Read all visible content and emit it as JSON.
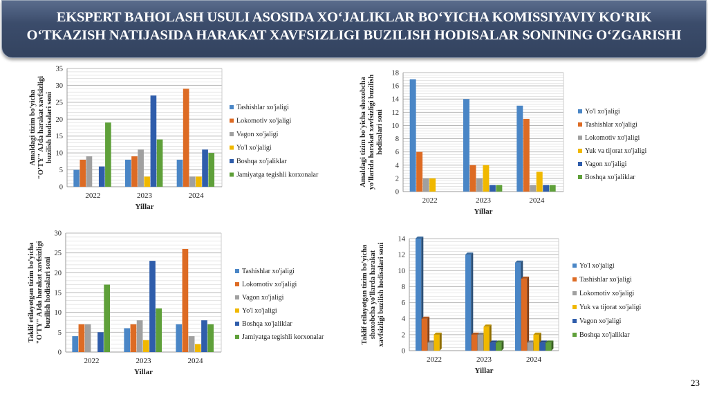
{
  "header": {
    "title_line1": "EKSPERT BAHOLASH USULI ASOSIDA XO‘JALIKLAR BO‘YICHA KOMISSIYAVIY KO‘RIK",
    "title_line2": "O‘TKAZISH NATIJASIDA HARAKAT XAVFSIZLIGI BUZILISH HODISALAR SONINING O‘ZGARISHI"
  },
  "page_number": "23",
  "colors": [
    "#4a86c6",
    "#dd6b24",
    "#a0a0a0",
    "#f0b800",
    "#2f5dab",
    "#5fa03a"
  ],
  "chart_data": [
    {
      "type": "bar",
      "xlabel": "Yillar",
      "ylabel": [
        "Amaldagi tizim bo'yicha",
        "\"O'TY\" AJda harakat xavfsizligi",
        "buzilish hodisalari soni"
      ],
      "categories": [
        "2022",
        "2023",
        "2024"
      ],
      "ylim": [
        0,
        35
      ],
      "ystep": 5,
      "grid": true,
      "legend": "right",
      "series": [
        {
          "name": "Tashishlar xo'jaligi",
          "values": [
            5,
            8,
            8
          ]
        },
        {
          "name": "Lokomotiv xo'jaligi",
          "values": [
            8,
            9,
            29
          ]
        },
        {
          "name": "Vagon xo'jaligi",
          "values": [
            9,
            11,
            3
          ]
        },
        {
          "name": "Yo'l xo'jaligi",
          "values": [
            0,
            3,
            3
          ]
        },
        {
          "name": "Boshqa xo'jaliklar",
          "values": [
            6,
            27,
            11
          ]
        },
        {
          "name": "Jamiyatga tegishli korxonalar",
          "values": [
            19,
            14,
            10
          ]
        }
      ]
    },
    {
      "type": "bar",
      "xlabel": "Yillar",
      "ylabel": [
        "Amaldagi tizim bo'yicha shoxobcha",
        "yo'llarida harakat xavfsizligi buzilish",
        "hodisalari soni"
      ],
      "categories": [
        "2022",
        "2023",
        "2024"
      ],
      "ylim": [
        0,
        18
      ],
      "ystep": 2,
      "grid": true,
      "legend": "right",
      "series": [
        {
          "name": "Yo'l xo'jaligi",
          "values": [
            17,
            14,
            13
          ]
        },
        {
          "name": "Tashishlar xo'jaligi",
          "values": [
            6,
            4,
            11
          ]
        },
        {
          "name": "Lokomotiv xo'jaligi",
          "values": [
            2,
            2,
            1
          ]
        },
        {
          "name": "Yuk va tijorat xo'jaligi",
          "values": [
            2,
            4,
            3
          ]
        },
        {
          "name": "Vagon xo'jaligi",
          "values": [
            0,
            1,
            1
          ]
        },
        {
          "name": "Boshqa xo'jaliklar",
          "values": [
            0,
            1,
            1
          ]
        }
      ]
    },
    {
      "type": "bar",
      "xlabel": "Yillar",
      "ylabel": [
        "Taklif etilayotgan tizim bo'yicha",
        "\"O'TY\" AJda harakat xavfsizligi",
        "buzilish hodisalari soni"
      ],
      "categories": [
        "2022",
        "2023",
        "2024"
      ],
      "ylim": [
        0,
        30
      ],
      "ystep": 5,
      "grid": true,
      "legend": "right",
      "series": [
        {
          "name": "Tashishlar xo'jaligi",
          "values": [
            4,
            6,
            7
          ]
        },
        {
          "name": "Lokomotiv xo'jaligi",
          "values": [
            7,
            7,
            26
          ]
        },
        {
          "name": "Vagon xo'jaligi",
          "values": [
            7,
            8,
            4
          ]
        },
        {
          "name": "Yo'l xo'jaligi",
          "values": [
            0,
            3,
            2
          ]
        },
        {
          "name": "Boshqa xo'jaliklar",
          "values": [
            5,
            23,
            8
          ]
        },
        {
          "name": "Jamiyatga tegishli korxonalar",
          "values": [
            17,
            11,
            7
          ]
        }
      ]
    },
    {
      "type": "bar",
      "style": "3d",
      "xlabel": "Yillar",
      "ylabel": [
        "Taklif etilayotgan tizim bo'yicha",
        "shoxobcha yo'llarda harakat",
        "xavfsizligi buzilish hodisalari soni"
      ],
      "categories": [
        "2022",
        "2023",
        "2024"
      ],
      "ylim": [
        0,
        14
      ],
      "ystep": 2,
      "grid": true,
      "legend": "right",
      "series": [
        {
          "name": "Yo'l xo'jaligi",
          "values": [
            14,
            12,
            11
          ]
        },
        {
          "name": "Tashishlar xo'jaligi",
          "values": [
            4,
            2,
            9
          ]
        },
        {
          "name": "Lokomotiv xo'jaligi",
          "values": [
            1,
            2,
            1
          ]
        },
        {
          "name": "Yuk va tijorat xo'jaligi",
          "values": [
            2,
            3,
            2
          ]
        },
        {
          "name": "Vagon xo'jaligi",
          "values": [
            0,
            1,
            1
          ]
        },
        {
          "name": "Boshqa xo'jaliklar",
          "values": [
            0,
            1,
            1
          ]
        }
      ]
    }
  ]
}
